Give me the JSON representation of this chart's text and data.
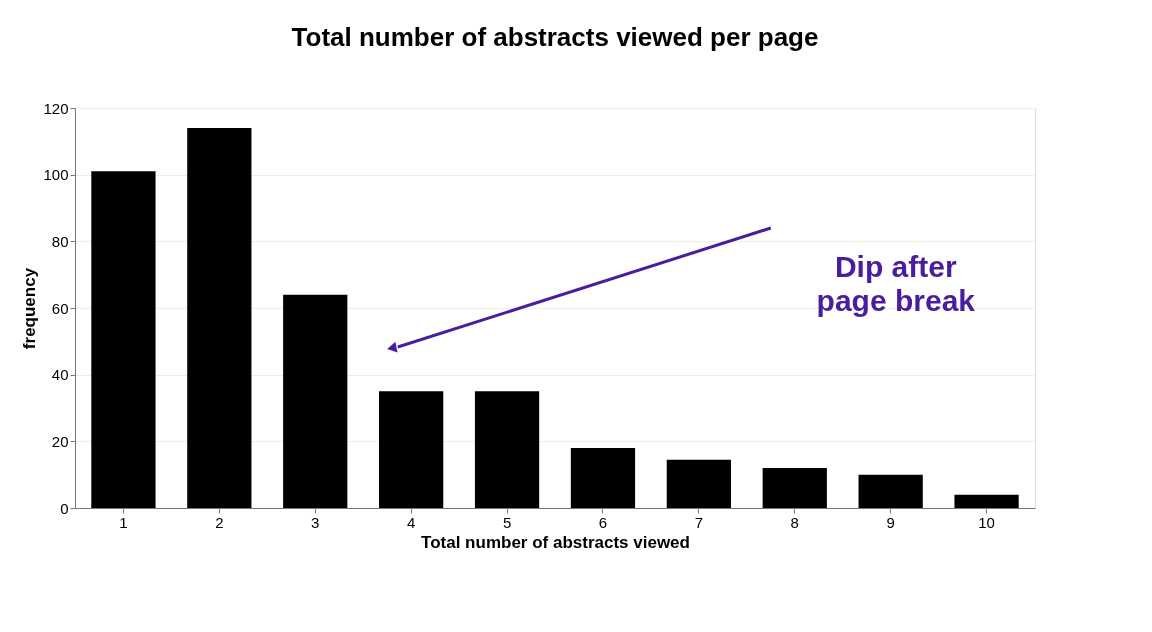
{
  "chart_data": {
    "type": "bar",
    "title": "Total number of abstracts viewed per page",
    "xlabel": "Total number of abstracts viewed",
    "ylabel": "frequency",
    "categories": [
      "1",
      "2",
      "3",
      "4",
      "5",
      "6",
      "7",
      "8",
      "9",
      "10"
    ],
    "values": [
      101,
      114,
      64,
      35,
      35,
      18,
      14.5,
      12,
      10,
      4
    ],
    "color": "#000000",
    "ylim": [
      0,
      120
    ],
    "yticks": [
      0,
      20,
      40,
      60,
      80,
      100,
      120
    ],
    "grid": "y",
    "annotations": [
      "Dip after\npage break"
    ]
  }
}
